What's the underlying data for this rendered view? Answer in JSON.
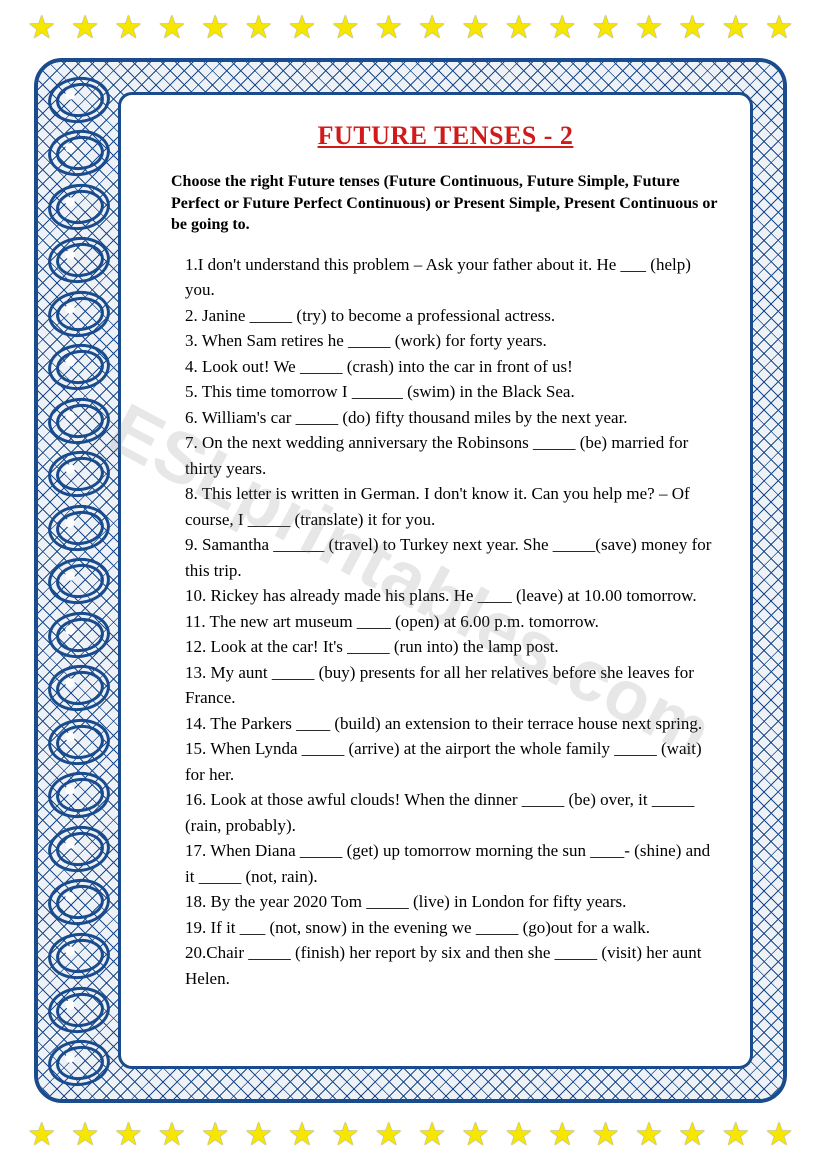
{
  "decoration": {
    "star_count": 18,
    "ring_count": 19,
    "star_color": "#f6e600",
    "border_color": "#1a4b8c",
    "title_color": "#d11a1a"
  },
  "title": "FUTURE TENSES - 2",
  "instructions": "Choose the right Future tenses (Future Continuous, Future Simple, Future Perfect or Future Perfect Continuous) or Present Simple, Present Continuous or be going to.",
  "questions": [
    "1.I don't understand this problem – Ask your father about it.  He  ___ (help) you.",
    "2.  Janine _____ (try) to become a professional actress.",
    "3. When Sam retires he _____ (work) for forty years.",
    "4. Look out! We _____ (crash) into the car in front of us!",
    "5. This time tomorrow I ______ (swim) in the Black Sea.",
    "6. William's car _____ (do) fifty thousand miles by the next year.",
    "7. On the next wedding anniversary the Robinsons _____ (be) married for thirty years.",
    "8. This letter is written in German. I don't know it. Can you help me? – Of course, I _____ (translate) it for you.",
    "9. Samantha ______ (travel) to Turkey next year. She _____(save) money for this trip.",
    "10. Rickey has already made his plans. He ____ (leave) at 10.00 tomorrow.",
    "11. The new art museum ____ (open) at 6.00 p.m. tomorrow.",
    "12. Look at the car! It's _____ (run into) the lamp post.",
    "13. My aunt _____ (buy) presents for all her relatives before she leaves for France.",
    "14. The Parkers ____ (build) an extension to their terrace house next spring.",
    "15. When Lynda _____ (arrive) at the airport the whole family _____ (wait) for her.",
    "16. Look at those awful clouds! When the dinner  _____ (be) over, it  _____ (rain, probably).",
    "17. When Diana _____ (get) up tomorrow morning the sun ____- (shine) and it _____ (not, rain).",
    "18. By the year 2020 Tom _____ (live) in London for fifty years.",
    "19. If it ___ (not, snow) in the evening we _____ (go)out for a walk.",
    "20.Chair _____ (finish) her report by six and then she _____ (visit) her aunt Helen."
  ],
  "watermark": "ESLprintables.com"
}
